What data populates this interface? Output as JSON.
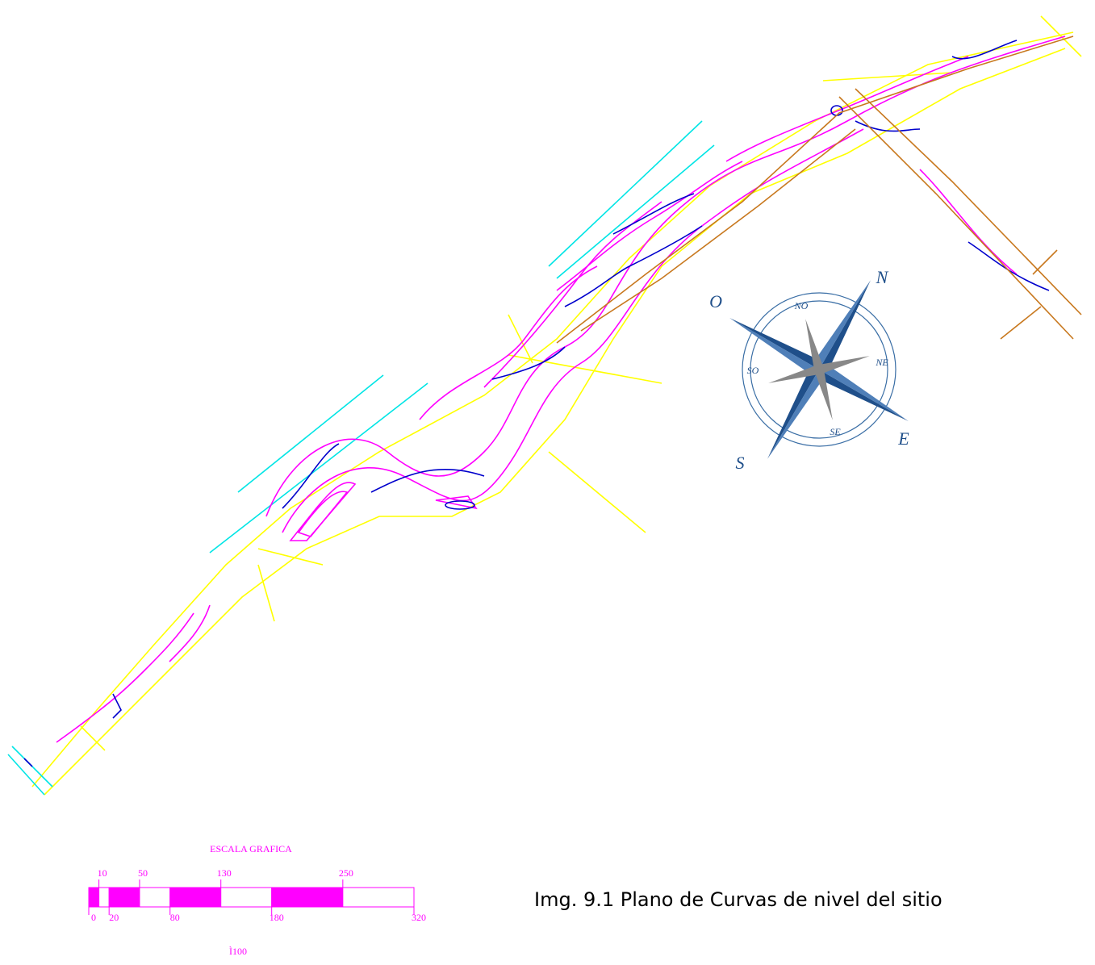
{
  "compass": {
    "north": "N",
    "northeast": "NE",
    "east": "E",
    "southeast": "SE",
    "south": "S",
    "southwest": "SO",
    "west": "O",
    "northwest": "NO"
  },
  "scale": {
    "title": "ESCALA GRAFICA",
    "top_ticks": [
      10,
      50,
      130,
      250
    ],
    "bottom_ticks": [
      0,
      20,
      80,
      180,
      320
    ],
    "ratio": "Ì100"
  },
  "caption": "Img. 9.1 Plano de Curvas de nivel del sitio"
}
